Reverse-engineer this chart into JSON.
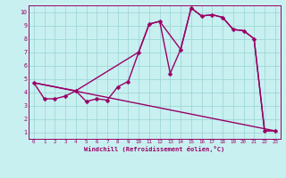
{
  "xlabel": "Windchill (Refroidissement éolien,°C)",
  "bg_color": "#c8f0f0",
  "grid_color": "#a0d8d8",
  "line_color": "#990066",
  "xlim": [
    -0.5,
    23.5
  ],
  "ylim": [
    0.5,
    10.5
  ],
  "xticks": [
    0,
    1,
    2,
    3,
    4,
    5,
    6,
    7,
    8,
    9,
    10,
    11,
    12,
    13,
    14,
    15,
    16,
    17,
    18,
    19,
    20,
    21,
    22,
    23
  ],
  "yticks": [
    1,
    2,
    3,
    4,
    5,
    6,
    7,
    8,
    9,
    10
  ],
  "line1_x": [
    0,
    1,
    2,
    3,
    4,
    5,
    6,
    7,
    8,
    9,
    10,
    11,
    12,
    13,
    14,
    15,
    16,
    17,
    18,
    19,
    20,
    21,
    22,
    23
  ],
  "line1_y": [
    4.7,
    3.5,
    3.5,
    3.7,
    4.1,
    3.3,
    3.5,
    3.4,
    4.4,
    4.8,
    7.0,
    9.1,
    9.3,
    5.4,
    7.2,
    10.3,
    9.7,
    9.8,
    9.6,
    8.7,
    8.6,
    8.0,
    1.1,
    1.1
  ],
  "line2_x": [
    0,
    4,
    10,
    11,
    12,
    14,
    15,
    16,
    17,
    18,
    19,
    20,
    21,
    22,
    23
  ],
  "line2_y": [
    4.7,
    4.1,
    7.0,
    9.1,
    9.3,
    7.2,
    10.3,
    9.7,
    9.8,
    9.6,
    8.7,
    8.6,
    8.0,
    1.1,
    1.1
  ],
  "line3_x": [
    0,
    23
  ],
  "line3_y": [
    4.7,
    1.1
  ],
  "markersize": 2.5,
  "linewidth": 1.0
}
